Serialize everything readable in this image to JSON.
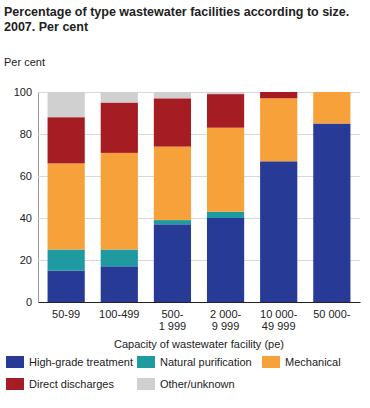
{
  "chart_data": {
    "type": "bar",
    "stacked": true,
    "title": "Percentage of type wastewater facilities according to size. 2007. Per cent",
    "y_label": "Per cent",
    "x_label": "Capacity of wastewater facility (pe)",
    "categories": [
      "50-99",
      "100-499",
      "500-1 999",
      "2 000-9 999",
      "10 000-49 999",
      "50 000-"
    ],
    "series": [
      {
        "name": "High-grade treatment",
        "color": "#263a96",
        "values": [
          15,
          17,
          37,
          40,
          67,
          85
        ]
      },
      {
        "name": "Natural purification",
        "color": "#1f9aa0",
        "values": [
          10,
          8,
          2,
          3,
          0,
          0
        ]
      },
      {
        "name": "Mechanical",
        "color": "#f7a13b",
        "values": [
          41,
          46,
          35,
          40,
          30,
          15
        ]
      },
      {
        "name": "Direct discharges",
        "color": "#a51c22",
        "values": [
          22,
          24,
          23,
          16,
          3,
          0
        ]
      },
      {
        "name": "Other/unknown",
        "color": "#d0d0d0",
        "values": [
          12,
          5,
          3,
          1,
          0,
          0
        ]
      }
    ],
    "ylim": [
      0,
      100
    ],
    "yticks": [
      0,
      20,
      40,
      60,
      80,
      100
    ],
    "grid": true,
    "legend": "bottom"
  }
}
